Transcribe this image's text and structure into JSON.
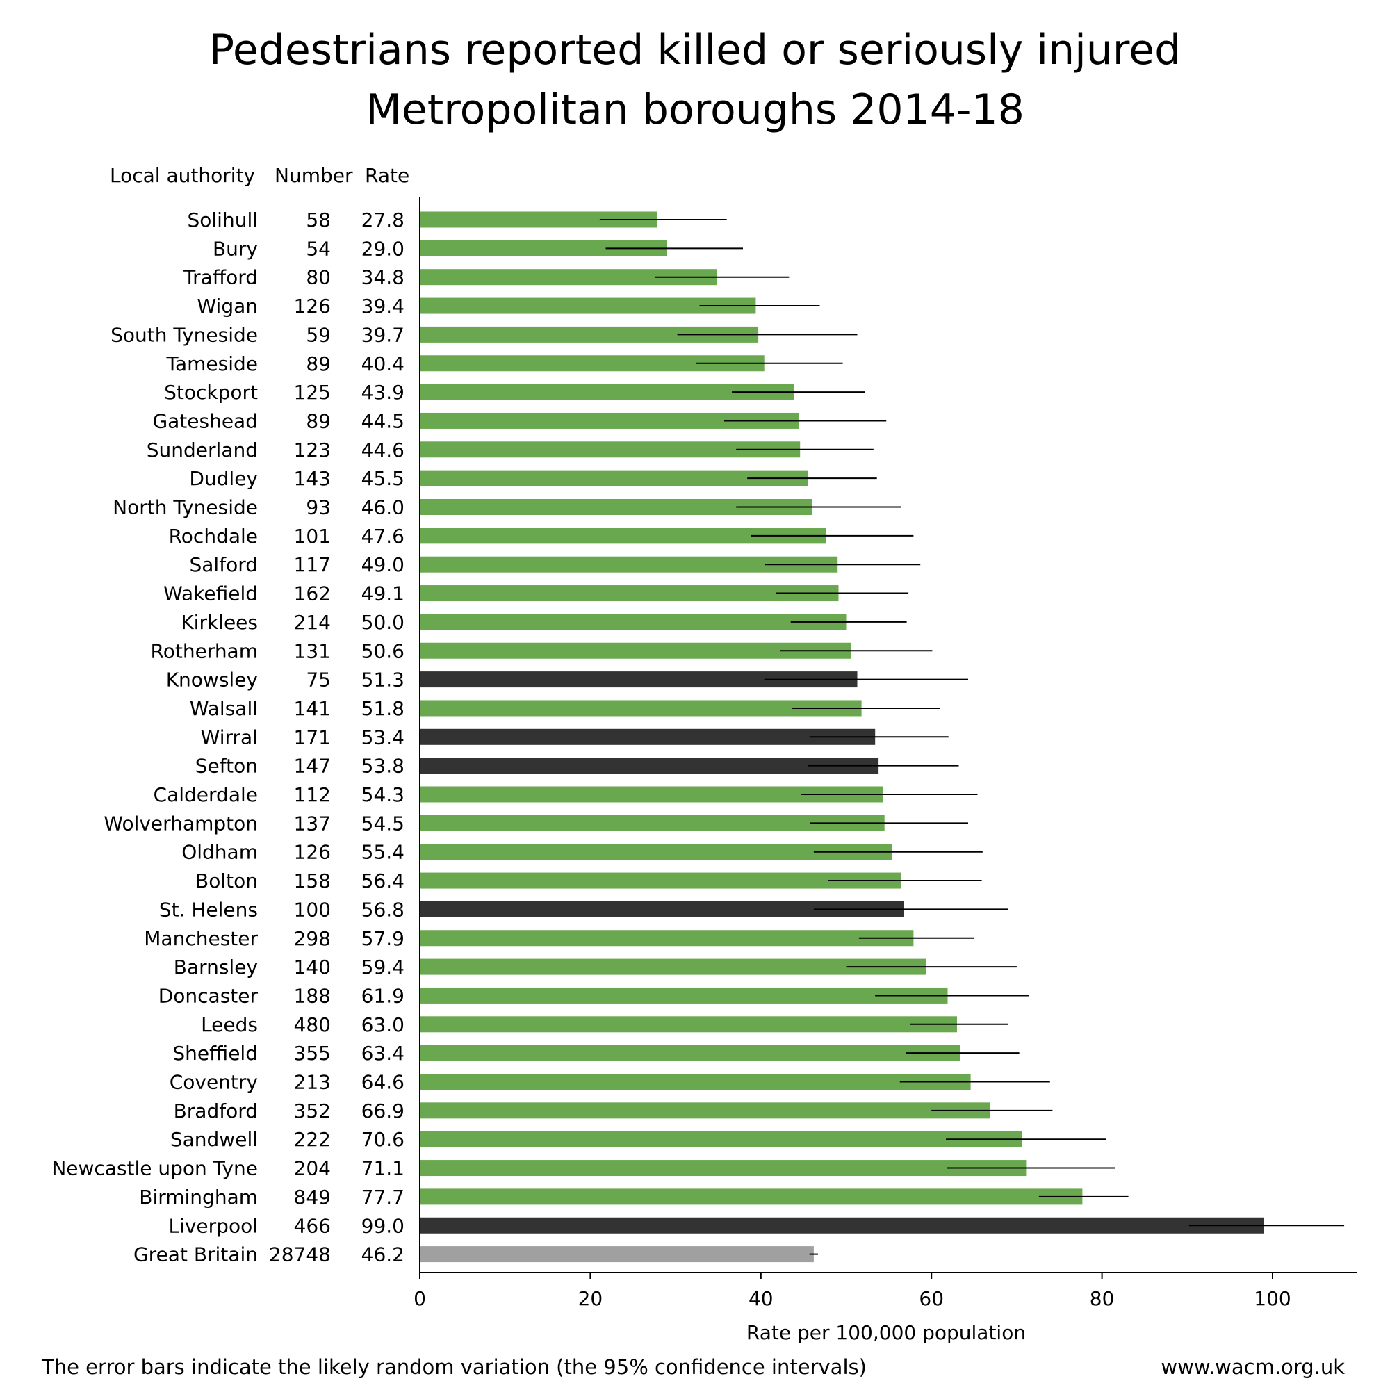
{
  "title_line1": "Pedestrians reported killed or seriously injured",
  "title_line2": "Metropolitan boroughs 2014-18",
  "footnote": "The error bars indicate the likely random variation (the 95% confidence intervals)",
  "website": "www.wacm.org.uk",
  "colors": {
    "default": "#6aa84f",
    "highlight": "#333333",
    "benchmark": "#a0a0a0",
    "error_bar": "#000000"
  },
  "chart_data": {
    "type": "bar",
    "orientation": "horizontal",
    "column_headers": [
      "Local authority",
      "Number",
      "Rate"
    ],
    "xlabel": "Rate per 100,000 population",
    "xlim": [
      0,
      110
    ],
    "xticks": [
      0,
      20,
      40,
      60,
      80,
      100
    ],
    "categories": [
      "Solihull",
      "Bury",
      "Trafford",
      "Wigan",
      "South Tyneside",
      "Tameside",
      "Stockport",
      "Gateshead",
      "Sunderland",
      "Dudley",
      "North Tyneside",
      "Rochdale",
      "Salford",
      "Wakefield",
      "Kirklees",
      "Rotherham",
      "Knowsley",
      "Walsall",
      "Wirral",
      "Sefton",
      "Calderdale",
      "Wolverhampton",
      "Oldham",
      "Bolton",
      "St. Helens",
      "Manchester",
      "Barnsley",
      "Doncaster",
      "Leeds",
      "Sheffield",
      "Coventry",
      "Bradford",
      "Sandwell",
      "Newcastle upon Tyne",
      "Birmingham",
      "Liverpool",
      "Great Britain"
    ],
    "numbers": [
      58,
      54,
      80,
      126,
      59,
      89,
      125,
      89,
      123,
      143,
      93,
      101,
      117,
      162,
      214,
      131,
      75,
      141,
      171,
      147,
      112,
      137,
      126,
      158,
      100,
      298,
      140,
      188,
      480,
      355,
      213,
      352,
      222,
      204,
      849,
      466,
      28748
    ],
    "values": [
      "27.8",
      "29.0",
      "34.8",
      "39.4",
      "39.7",
      "40.4",
      "43.9",
      "44.5",
      "44.6",
      "45.5",
      "46.0",
      "47.6",
      "49.0",
      "49.1",
      "50.0",
      "50.6",
      "51.3",
      "51.8",
      "53.4",
      "53.8",
      "54.3",
      "54.5",
      "55.4",
      "56.4",
      "56.8",
      "57.9",
      "59.4",
      "61.9",
      "63.0",
      "63.4",
      "64.6",
      "66.9",
      "70.6",
      "71.1",
      "77.7",
      "99.0",
      "46.2"
    ],
    "ci_low": [
      21.1,
      21.8,
      27.6,
      32.8,
      30.2,
      32.4,
      36.6,
      35.7,
      37.1,
      38.4,
      37.1,
      38.8,
      40.5,
      41.8,
      43.5,
      42.3,
      40.4,
      43.6,
      45.7,
      45.5,
      44.7,
      45.8,
      46.2,
      47.9,
      46.2,
      51.5,
      50.0,
      53.4,
      57.5,
      57.0,
      56.3,
      60.0,
      61.7,
      61.8,
      72.6,
      90.2,
      45.7
    ],
    "ci_high": [
      36.0,
      37.9,
      43.3,
      46.9,
      51.3,
      49.6,
      52.2,
      54.7,
      53.2,
      53.6,
      56.4,
      57.9,
      58.7,
      57.3,
      57.1,
      60.1,
      64.3,
      61.0,
      62.0,
      63.2,
      65.4,
      64.3,
      66.0,
      65.9,
      69.0,
      65.0,
      70.0,
      71.4,
      69.0,
      70.3,
      73.9,
      74.2,
      80.5,
      81.5,
      83.1,
      108.4,
      46.7
    ],
    "category_type": [
      "default",
      "default",
      "default",
      "default",
      "default",
      "default",
      "default",
      "default",
      "default",
      "default",
      "default",
      "default",
      "default",
      "default",
      "default",
      "default",
      "highlight",
      "default",
      "highlight",
      "highlight",
      "default",
      "default",
      "default",
      "default",
      "highlight",
      "default",
      "default",
      "default",
      "default",
      "default",
      "default",
      "default",
      "default",
      "default",
      "default",
      "highlight",
      "benchmark"
    ]
  }
}
